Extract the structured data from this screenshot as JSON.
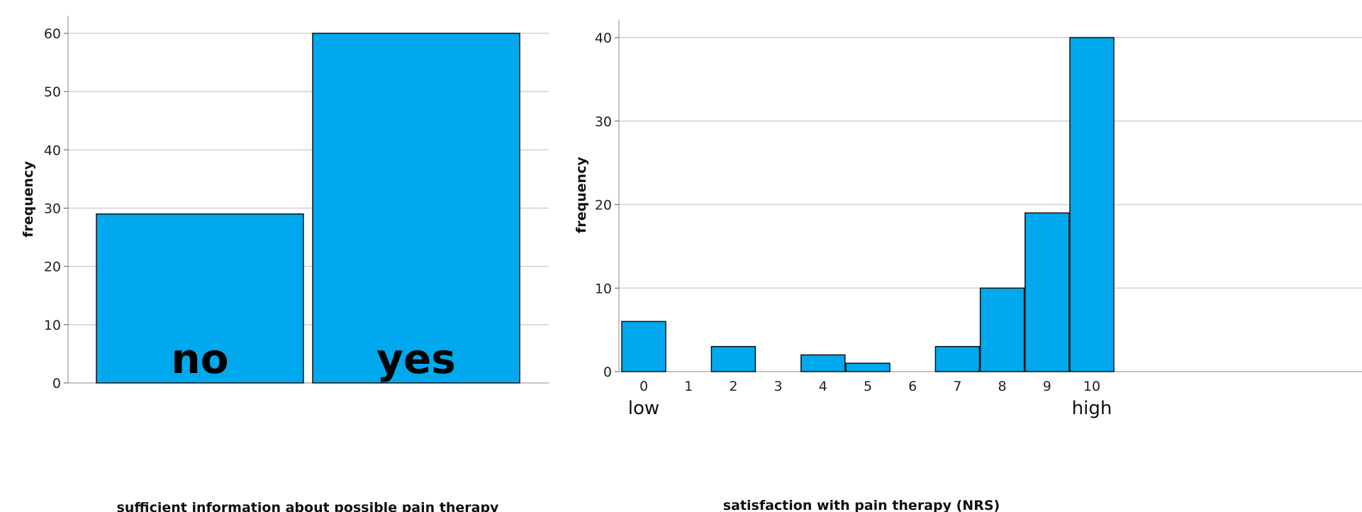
{
  "chart_data": [
    {
      "type": "bar",
      "categories": [
        "no",
        "yes"
      ],
      "values": [
        29,
        60
      ],
      "xlabel": "sufficient information about possible pain therapy",
      "ylabel": "frequency",
      "ylim": [
        0,
        60
      ],
      "yticks": [
        0,
        10,
        20,
        30,
        40,
        50,
        60
      ],
      "grid": true,
      "bar_labels_inside": true,
      "color": "#00a9ed"
    },
    {
      "type": "bar",
      "categories": [
        "0",
        "1",
        "2",
        "3",
        "4",
        "5",
        "6",
        "7",
        "8",
        "9",
        "10"
      ],
      "values": [
        6,
        0,
        3,
        0,
        2,
        1,
        0,
        3,
        10,
        19,
        40
      ],
      "xlabel": "satisfaction with pain therapy (NRS)",
      "ylabel": "frequency",
      "ylim": [
        0,
        40
      ],
      "yticks": [
        0,
        10,
        20,
        30,
        40
      ],
      "grid": true,
      "end_labels": {
        "low": "low",
        "high": "high"
      },
      "color": "#00a9ed"
    }
  ]
}
